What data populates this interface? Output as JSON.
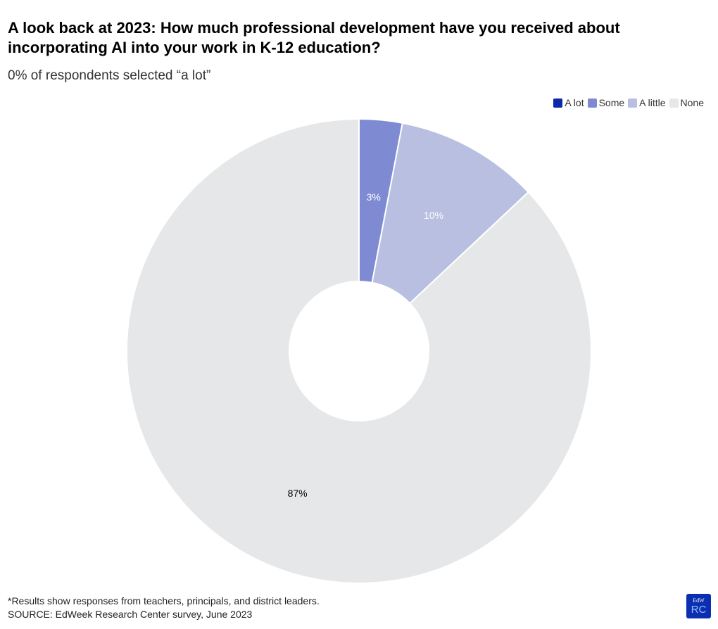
{
  "title": "A look back at 2023: How much professional development have you received about incorporating AI into your work in K-12 education?",
  "subtitle": "0% of respondents selected “a lot”",
  "notes": [
    "*Results show responses from teachers, principals, and district leaders.",
    "SOURCE: EdWeek Research Center survey, June 2023"
  ],
  "logo": {
    "top": "EdW",
    "bottom": "RC"
  },
  "chart_data": {
    "type": "pie",
    "donut": true,
    "legend_position": "top-right",
    "categories": [
      "A lot",
      "Some",
      "A little",
      "None"
    ],
    "values": [
      0,
      3,
      10,
      87
    ],
    "labels": [
      "",
      "3%",
      "10%",
      "87%"
    ],
    "colors": [
      "#0a2aa8",
      "#7e8bd3",
      "#b8bfe0",
      "#e6e7e9"
    ],
    "label_colors": [
      "#ffffff",
      "#ffffff",
      "#ffffff",
      "#000000"
    ]
  }
}
